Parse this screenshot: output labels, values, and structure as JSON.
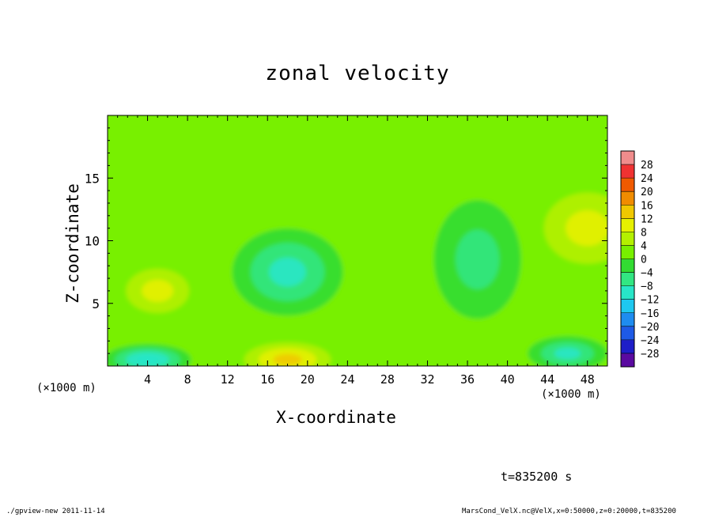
{
  "title": "zonal velocity",
  "chart_data": {
    "type": "heatmap",
    "title": "zonal velocity",
    "xlabel": "X-coordinate",
    "ylabel": "Z-coordinate",
    "x_unit": "(×1000 m)",
    "xlim": [
      0,
      50
    ],
    "ylim": [
      0,
      20
    ],
    "x_ticks": [
      4,
      8,
      12,
      16,
      20,
      24,
      28,
      32,
      36,
      40,
      44,
      48
    ],
    "y_ticks": [
      5,
      10,
      15
    ],
    "colorbar": {
      "levels": [
        -32,
        -28,
        -24,
        -20,
        -16,
        -12,
        -8,
        -4,
        0,
        4,
        8,
        12,
        16,
        20,
        24,
        28,
        32
      ],
      "labels": [
        "28",
        "24",
        "20",
        "16",
        "12",
        "8",
        "4",
        "0",
        "−4",
        "−8",
        "−12",
        "−16",
        "−20",
        "−24",
        "−28"
      ],
      "colors": [
        "#5a0aa0",
        "#1e1ec8",
        "#1e5ae6",
        "#1e8cf0",
        "#1ec8f0",
        "#28e6c8",
        "#32e682",
        "#32dc32",
        "#78f000",
        "#b4f000",
        "#e6f000",
        "#f0c800",
        "#f08c00",
        "#f05a00",
        "#f03232",
        "#f08c8c"
      ]
    },
    "field_features": [
      {
        "desc": "background",
        "value": 3
      },
      {
        "desc": "negative core",
        "x": 18,
        "z": 7.5,
        "value": -10
      },
      {
        "desc": "negative near surface",
        "x": 4,
        "z": 0.5,
        "value": -12
      },
      {
        "desc": "positive near surface",
        "x": 18,
        "z": 0.5,
        "value": 13
      },
      {
        "desc": "positive lobe",
        "x": 5,
        "z": 6,
        "value": 9
      },
      {
        "desc": "positive lobe",
        "x": 48,
        "z": 11,
        "value": 9
      },
      {
        "desc": "weak negative",
        "x": 37,
        "z": 8.5,
        "value": -5
      },
      {
        "desc": "negative near surface",
        "x": 46,
        "z": 1,
        "value": -9
      }
    ]
  },
  "annotations": {
    "time": "t=835200 s",
    "footer_left": "./gpview-new  2011-11-14",
    "footer_right": "MarsCond_VelX.nc@VelX,x=0:50000,z=0:20000,t=835200"
  }
}
